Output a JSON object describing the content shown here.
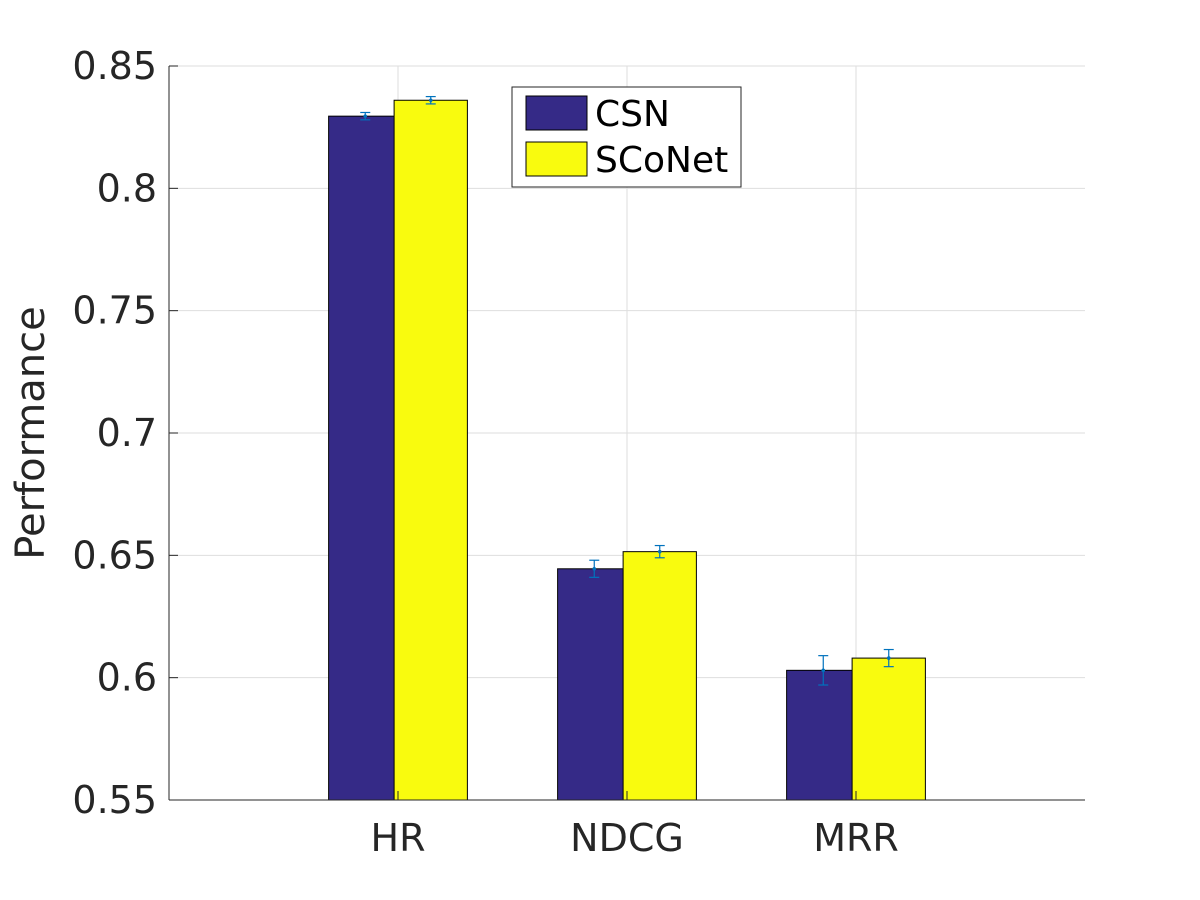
{
  "chart_data": {
    "type": "bar",
    "title": "",
    "xlabel": "",
    "ylabel": "Performance",
    "categories": [
      "HR",
      "NDCG",
      "MRR"
    ],
    "series": [
      {
        "name": "CSN",
        "values": [
          0.8295,
          0.6445,
          0.603
        ],
        "errors": [
          0.0015,
          0.0035,
          0.006
        ],
        "color": "#352a87"
      },
      {
        "name": "SCoNet",
        "values": [
          0.836,
          0.6515,
          0.608
        ],
        "errors": [
          0.0015,
          0.0025,
          0.0035
        ],
        "color": "#f9fb0e"
      }
    ],
    "ylim": [
      0.55,
      0.85
    ],
    "yticks": [
      0.55,
      0.6,
      0.65,
      0.7,
      0.75,
      0.8,
      0.85
    ],
    "ytick_labels": [
      "0.55",
      "0.6",
      "0.65",
      "0.7",
      "0.75",
      "0.8",
      "0.85"
    ],
    "grid": true,
    "legend_position": "top-center",
    "errorbar_color": "#0072bd"
  }
}
